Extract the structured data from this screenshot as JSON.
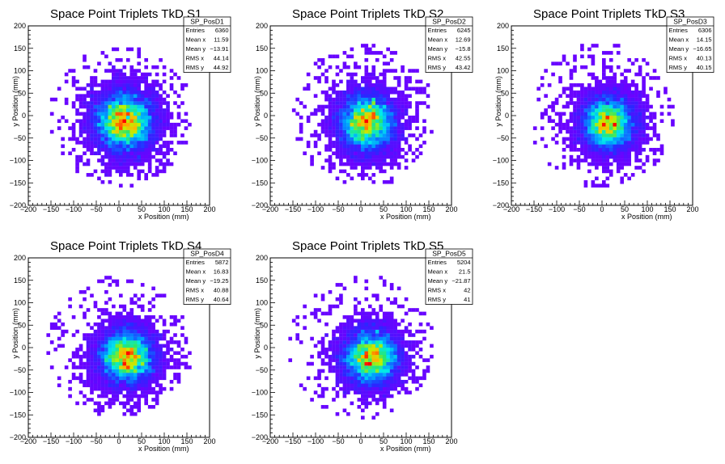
{
  "chart_data": [
    {
      "type": "heatmap",
      "title": "Space Point Triplets TkD S1",
      "xlabel": "x Position (mm)",
      "ylabel": "y Position (mm)",
      "xlim": [
        -200,
        200
      ],
      "ylim": [
        -200,
        200
      ],
      "xticks": [
        "−200",
        "−150",
        "−100",
        "−50",
        "0",
        "50",
        "100",
        "150",
        "200"
      ],
      "yticks": [
        "−200",
        "−150",
        "−100",
        "−50",
        "0",
        "50",
        "100",
        "150",
        "200"
      ],
      "stats": {
        "name": "SP_PosD1",
        "rows": [
          {
            "label": "Entries",
            "value": "6360"
          },
          {
            "label": "Mean x",
            "value": "11.59"
          },
          {
            "label": "Mean y",
            "value": "−13.91"
          },
          {
            "label": "RMS x",
            "value": "44.14"
          },
          {
            "label": "RMS y",
            "value": "44.92"
          }
        ]
      },
      "distribution": {
        "entries": 6360,
        "mean_x": 11.59,
        "mean_y": -13.91,
        "rms_x": 44.14,
        "rms_y": 44.92,
        "extent_x": [
          -150,
          160
        ],
        "extent_y": [
          -160,
          160
        ]
      },
      "grid": false,
      "palette": "rainbow"
    },
    {
      "type": "heatmap",
      "title": "Space Point Triplets TkD S2",
      "xlabel": "x Position (mm)",
      "ylabel": "y Position (mm)",
      "xlim": [
        -200,
        200
      ],
      "ylim": [
        -200,
        200
      ],
      "xticks": [
        "−200",
        "−150",
        "−100",
        "−50",
        "0",
        "50",
        "100",
        "150",
        "200"
      ],
      "yticks": [
        "−200",
        "−150",
        "−100",
        "−50",
        "0",
        "50",
        "100",
        "150",
        "200"
      ],
      "stats": {
        "name": "SP_PosD2",
        "rows": [
          {
            "label": "Entries",
            "value": "6245"
          },
          {
            "label": "Mean x",
            "value": "12.69"
          },
          {
            "label": "Mean y",
            "value": "−15.8"
          },
          {
            "label": "RMS x",
            "value": "42.55"
          },
          {
            "label": "RMS y",
            "value": "43.42"
          }
        ]
      },
      "distribution": {
        "entries": 6245,
        "mean_x": 12.69,
        "mean_y": -15.8,
        "rms_x": 42.55,
        "rms_y": 43.42,
        "extent_x": [
          -150,
          160
        ],
        "extent_y": [
          -160,
          160
        ]
      },
      "grid": false,
      "palette": "rainbow"
    },
    {
      "type": "heatmap",
      "title": "Space Point Triplets TkD S3",
      "xlabel": "x Position (mm)",
      "ylabel": "y Position (mm)",
      "xlim": [
        -200,
        200
      ],
      "ylim": [
        -200,
        200
      ],
      "xticks": [
        "−200",
        "−150",
        "−100",
        "−50",
        "0",
        "50",
        "100",
        "150",
        "200"
      ],
      "yticks": [
        "−200",
        "−150",
        "−100",
        "−50",
        "0",
        "50",
        "100",
        "150",
        "200"
      ],
      "stats": {
        "name": "SP_PosD3",
        "rows": [
          {
            "label": "Entries",
            "value": "6306"
          },
          {
            "label": "Mean x",
            "value": "14.15"
          },
          {
            "label": "Mean y",
            "value": "−16.65"
          },
          {
            "label": "RMS x",
            "value": "40.13"
          },
          {
            "label": "RMS y",
            "value": "40.15"
          }
        ]
      },
      "distribution": {
        "entries": 6306,
        "mean_x": 14.15,
        "mean_y": -16.65,
        "rms_x": 40.13,
        "rms_y": 40.15,
        "extent_x": [
          -160,
          160
        ],
        "extent_y": [
          -160,
          160
        ]
      },
      "grid": false,
      "palette": "rainbow"
    },
    {
      "type": "heatmap",
      "title": "Space Point Triplets TkD S4",
      "xlabel": "x Position (mm)",
      "ylabel": "y Position (mm)",
      "xlim": [
        -200,
        200
      ],
      "ylim": [
        -200,
        200
      ],
      "xticks": [
        "−200",
        "−150",
        "−100",
        "−50",
        "0",
        "50",
        "100",
        "150",
        "200"
      ],
      "yticks": [
        "−200",
        "−150",
        "−100",
        "−50",
        "0",
        "50",
        "100",
        "150",
        "200"
      ],
      "stats": {
        "name": "SP_PosD4",
        "rows": [
          {
            "label": "Entries",
            "value": "5872"
          },
          {
            "label": "Mean x",
            "value": "16.83"
          },
          {
            "label": "Mean y",
            "value": "−19.25"
          },
          {
            "label": "RMS x",
            "value": "40.88"
          },
          {
            "label": "RMS y",
            "value": "40.64"
          }
        ]
      },
      "distribution": {
        "entries": 5872,
        "mean_x": 16.83,
        "mean_y": -19.25,
        "rms_x": 40.88,
        "rms_y": 40.64,
        "extent_x": [
          -160,
          160
        ],
        "extent_y": [
          -160,
          160
        ]
      },
      "grid": false,
      "palette": "rainbow"
    },
    {
      "type": "heatmap",
      "title": "Space Point Triplets TkD S5",
      "xlabel": "x Position (mm)",
      "ylabel": "y Position (mm)",
      "xlim": [
        -200,
        200
      ],
      "ylim": [
        -200,
        200
      ],
      "xticks": [
        "−200",
        "−150",
        "−100",
        "−50",
        "0",
        "50",
        "100",
        "150",
        "200"
      ],
      "yticks": [
        "−200",
        "−150",
        "−100",
        "−50",
        "0",
        "50",
        "100",
        "150",
        "200"
      ],
      "stats": {
        "name": "SP_PosD5",
        "rows": [
          {
            "label": "Entries",
            "value": "5204"
          },
          {
            "label": "Mean x",
            "value": "21.5"
          },
          {
            "label": "Mean y",
            "value": "−21.87"
          },
          {
            "label": "RMS x",
            "value": "42"
          },
          {
            "label": "RMS y",
            "value": "41"
          }
        ]
      },
      "distribution": {
        "entries": 5204,
        "mean_x": 21.5,
        "mean_y": -21.87,
        "rms_x": 42,
        "rms_y": 41,
        "extent_x": [
          -160,
          160
        ],
        "extent_y": [
          -160,
          160
        ]
      },
      "grid": false,
      "palette": "rainbow"
    }
  ]
}
